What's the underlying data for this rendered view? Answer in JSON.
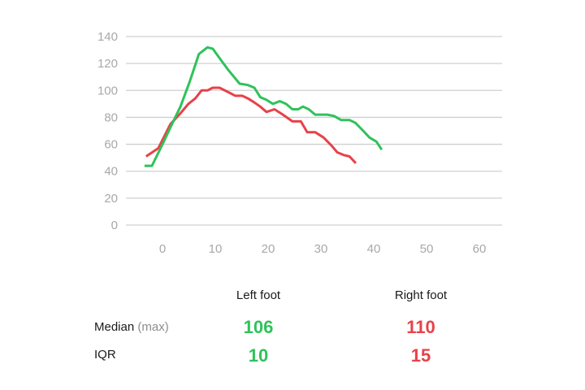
{
  "chart_data": {
    "type": "line",
    "title": "",
    "xlabel": "",
    "ylabel": "",
    "xlim": [
      -7,
      64
    ],
    "ylim": [
      0,
      140
    ],
    "x_ticks": [
      0,
      10,
      20,
      30,
      40,
      50,
      60
    ],
    "y_ticks": [
      0,
      20,
      40,
      60,
      80,
      100,
      120,
      140
    ],
    "grid": "horizontal",
    "legend": "none",
    "series": [
      {
        "name": "Left foot",
        "color": "#2fc25b",
        "x": [
          -3.4,
          -2.0,
          0.0,
          1.8,
          3.4,
          5.1,
          6.9,
          8.5,
          9.5,
          10.8,
          12.3,
          14.6,
          16.2,
          17.4,
          18.5,
          19.7,
          20.9,
          22.2,
          23.4,
          24.6,
          25.7,
          26.6,
          27.7,
          28.9,
          31.2,
          32.5,
          33.8,
          35.4,
          36.5,
          38.0,
          39.2,
          40.5,
          41.5
        ],
        "y": [
          44,
          44,
          60,
          75,
          88,
          106,
          127,
          132,
          131,
          124,
          116,
          105,
          104,
          102,
          95,
          93,
          90,
          92,
          90,
          86,
          86,
          88,
          86,
          82,
          82,
          81,
          78,
          78,
          76,
          70,
          65,
          62,
          56
        ]
      },
      {
        "name": "Right foot",
        "color": "#e8414a",
        "x": [
          -3.1,
          -0.8,
          1.5,
          3.4,
          4.9,
          6.2,
          7.4,
          8.5,
          9.5,
          10.8,
          12.3,
          13.8,
          15.1,
          16.2,
          17.4,
          18.5,
          19.7,
          21.2,
          22.8,
          24.6,
          26.2,
          27.4,
          28.9,
          30.5,
          32.0,
          33.1,
          34.3,
          35.4,
          36.6
        ],
        "y": [
          51,
          57,
          75,
          83,
          90,
          94,
          100,
          100,
          102,
          102,
          99,
          96,
          96,
          94,
          91,
          88,
          84,
          86,
          82,
          77,
          77,
          69,
          69,
          65,
          59,
          54,
          52,
          51,
          46
        ]
      }
    ]
  },
  "axes": {
    "y_ticks": [
      "140",
      "120",
      "100",
      "80",
      "60",
      "40",
      "20",
      "0"
    ],
    "x_ticks": [
      "0",
      "10",
      "20",
      "30",
      "40",
      "50",
      "60"
    ]
  },
  "stats_table": {
    "columns": [
      "Left foot",
      "Right foot"
    ],
    "rows": [
      {
        "label": "Median",
        "label_suffix": "(max)",
        "left": "106",
        "right": "110"
      },
      {
        "label": "IQR",
        "label_suffix": "",
        "left": "10",
        "right": "15"
      }
    ]
  },
  "colors": {
    "left": "#2fc25b",
    "right": "#e8414a",
    "grid": "#d0d0d0",
    "tick": "#a8a8a8"
  }
}
